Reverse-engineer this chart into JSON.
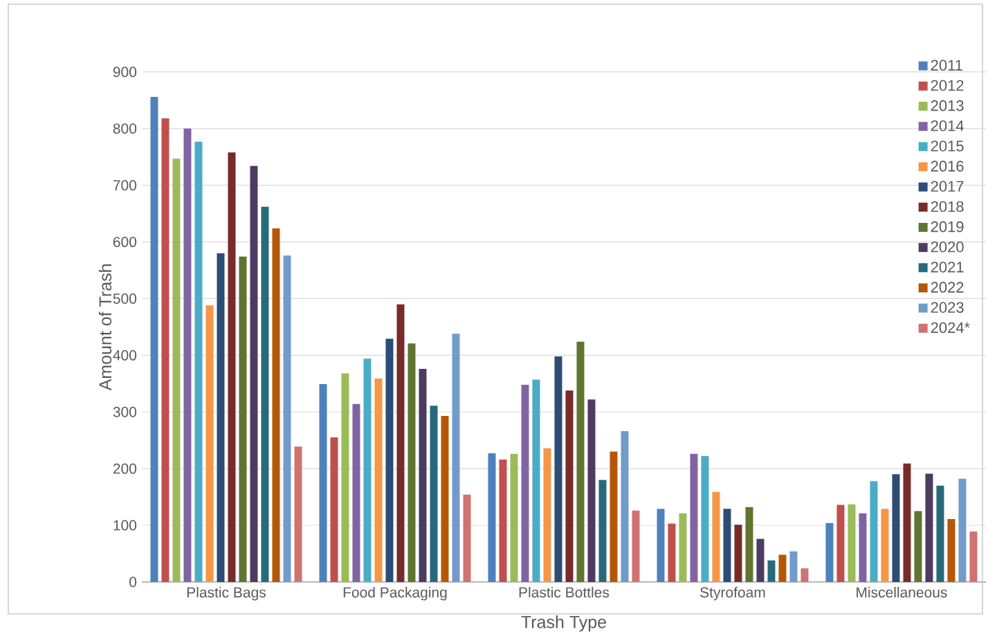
{
  "chart_data": {
    "type": "bar",
    "xlabel": "Trash Type",
    "ylabel": "Amount of Trash",
    "categories": [
      "Plastic Bags",
      "Food Packaging",
      "Plastic Bottles",
      "Styrofoam",
      "Miscellaneous"
    ],
    "ylim": [
      0,
      900
    ],
    "yticks": [
      0,
      100,
      200,
      300,
      400,
      500,
      600,
      700,
      800,
      900
    ],
    "grid": "y",
    "legend": "top right",
    "series": [
      {
        "name": "2011",
        "color": "#4f81bd",
        "values": [
          856,
          349,
          227,
          129,
          104
        ]
      },
      {
        "name": "2012",
        "color": "#c0504d",
        "values": [
          818,
          255,
          216,
          103,
          136
        ]
      },
      {
        "name": "2013",
        "color": "#9bbb59",
        "values": [
          747,
          368,
          226,
          121,
          137
        ]
      },
      {
        "name": "2014",
        "color": "#8064a2",
        "values": [
          800,
          314,
          348,
          226,
          121
        ]
      },
      {
        "name": "2015",
        "color": "#4bacc6",
        "values": [
          777,
          394,
          357,
          222,
          178
        ]
      },
      {
        "name": "2016",
        "color": "#f79646",
        "values": [
          488,
          359,
          236,
          159,
          129
        ]
      },
      {
        "name": "2017",
        "color": "#2c4d75",
        "values": [
          580,
          429,
          398,
          129,
          190
        ]
      },
      {
        "name": "2018",
        "color": "#772c2a",
        "values": [
          758,
          490,
          338,
          101,
          209
        ]
      },
      {
        "name": "2019",
        "color": "#5f7530",
        "values": [
          574,
          421,
          424,
          132,
          125
        ]
      },
      {
        "name": "2020",
        "color": "#4d3b62",
        "values": [
          734,
          376,
          322,
          76,
          191
        ]
      },
      {
        "name": "2021",
        "color": "#276a7c",
        "values": [
          662,
          311,
          180,
          38,
          170
        ]
      },
      {
        "name": "2022",
        "color": "#b65708",
        "values": [
          624,
          293,
          230,
          48,
          111
        ]
      },
      {
        "name": "2023",
        "color": "#729aca",
        "values": [
          576,
          438,
          266,
          54,
          182
        ]
      },
      {
        "name": "2024*",
        "color": "#d07270",
        "values": [
          239,
          154,
          126,
          24,
          89
        ]
      }
    ]
  }
}
